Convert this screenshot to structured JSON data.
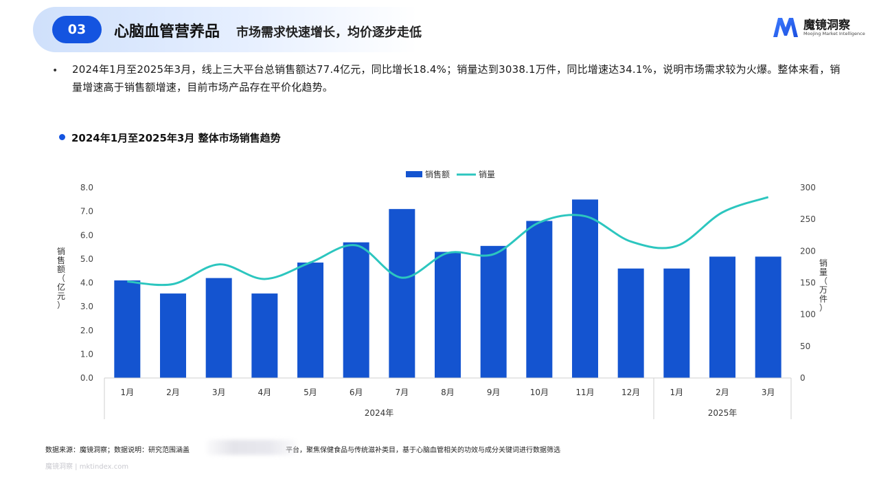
{
  "header": {
    "section_no": "03",
    "title": "心脑血管营养品",
    "subtitle": "市场需求快速增长，均价逐步走低"
  },
  "logo": {
    "name": "魔镜洞察",
    "tagline": "Moojing Market Intelligence"
  },
  "summary": "2024年1月至2025年3月，线上三大平台总销售额达77.4亿元，同比增长18.4%；销量达到3038.1万件，同比增速达34.1%，说明市场需求较为火爆。整体来看，销量增速高于销售额增速，目前市场产品存在平价化趋势。",
  "chart_heading": "2024年1月至2025年3月 整体市场销售趋势",
  "chart_data": {
    "type": "bar",
    "categories": [
      "1月",
      "2月",
      "3月",
      "4月",
      "5月",
      "6月",
      "7月",
      "8月",
      "9月",
      "10月",
      "11月",
      "12月",
      "1月",
      "2月",
      "3月"
    ],
    "year_groups": [
      {
        "label": "2024年",
        "count": 12
      },
      {
        "label": "2025年",
        "count": 3
      }
    ],
    "series": [
      {
        "name": "销售额",
        "type": "bar",
        "axis": "left",
        "color": "#1454d0",
        "values": [
          4.1,
          3.55,
          4.2,
          3.55,
          4.85,
          5.7,
          7.1,
          5.3,
          5.55,
          6.6,
          7.5,
          4.6,
          4.6,
          5.1,
          5.1
        ]
      },
      {
        "name": "销量",
        "type": "line",
        "axis": "right",
        "color": "#2cc6bf",
        "values": [
          152,
          148,
          179,
          156,
          182,
          209,
          158,
          197,
          195,
          245,
          255,
          215,
          208,
          261,
          285
        ]
      }
    ],
    "ylabel": "销售额（亿元）",
    "y2label": "销量（万件）",
    "ylim": [
      0,
      8
    ],
    "y2lim": [
      0,
      300
    ],
    "yticks": [
      "0.0",
      "1.0",
      "2.0",
      "3.0",
      "4.0",
      "5.0",
      "6.0",
      "7.0",
      "8.0"
    ],
    "y2ticks": [
      "0",
      "50",
      "100",
      "150",
      "200",
      "250",
      "300"
    ],
    "legend_position": "top-center",
    "grid": false
  },
  "footer": {
    "source_prefix": "数据来源：魔镜洞察；数据说明：研究范围涵盖",
    "source_suffix": "平台，聚焦保健食品与传统滋补类目，基于心脑血管相关的功效与成分关键词进行数据筛选",
    "url": "魔镜洞察 | mktindex.com"
  }
}
